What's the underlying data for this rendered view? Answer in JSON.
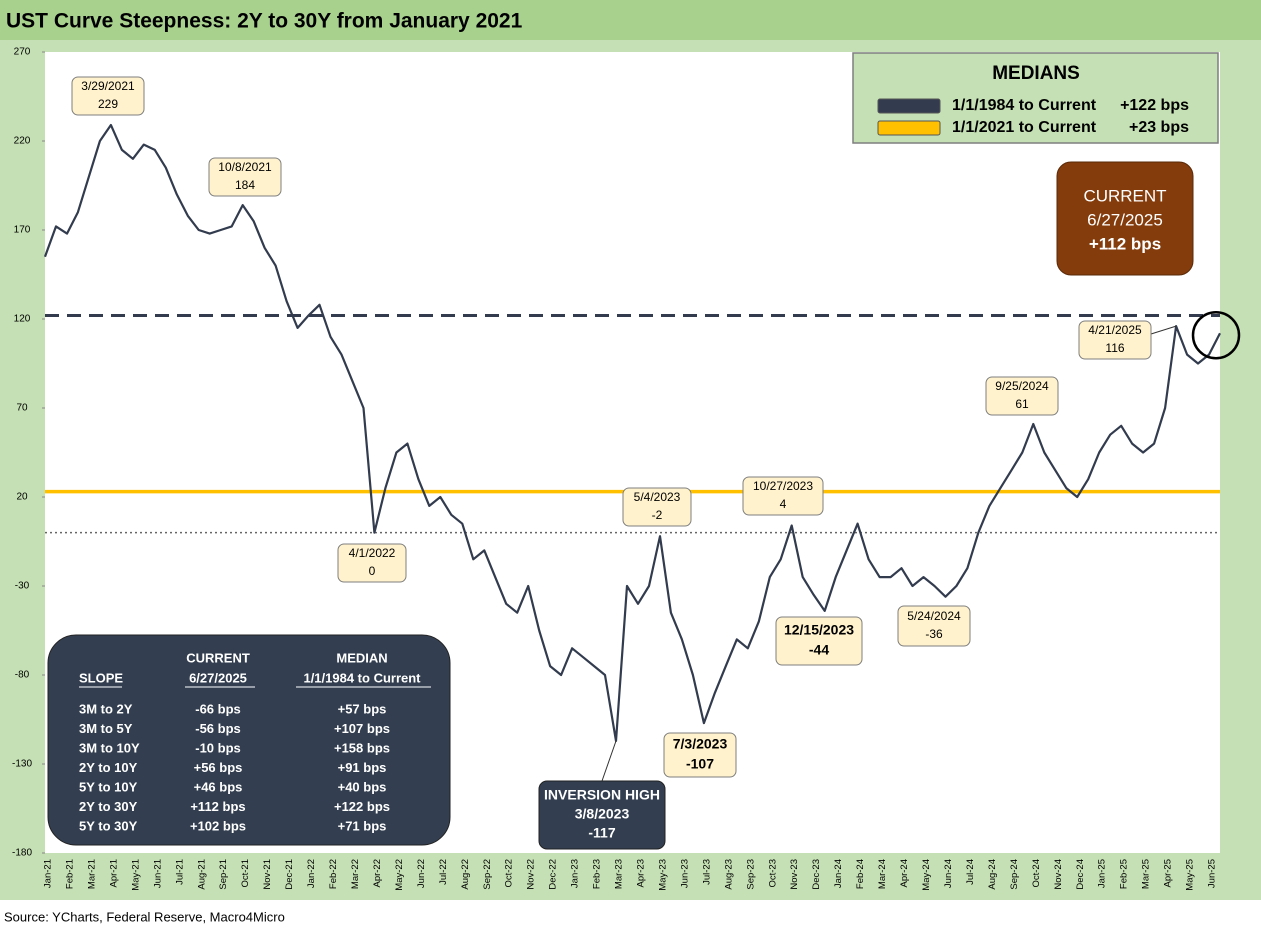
{
  "chart_data": {
    "type": "line",
    "title": "UST Curve Steepness: 2Y to 30Y from January 2021",
    "source": "Source: YCharts, Federal Reserve, Macro4Micro",
    "categories": [
      "Jan-21",
      null,
      "Feb-21",
      null,
      "Mar-21",
      null,
      "Apr-21",
      null,
      "May-21",
      null,
      "Jun-21",
      null,
      "Jul-21",
      null,
      "Aug-21",
      null,
      "Sep-21",
      null,
      "Oct-21",
      null,
      "Nov-21",
      null,
      "Dec-21",
      null,
      "Jan-22",
      null,
      "Feb-22",
      null,
      "Mar-22",
      null,
      "Apr-22",
      null,
      "May-22",
      null,
      "Jun-22",
      null,
      "Jul-22",
      null,
      "Aug-22",
      null,
      "Sep-22",
      null,
      "Oct-22",
      null,
      "Nov-22",
      null,
      "Dec-22",
      null,
      "Jan-23",
      null,
      "Feb-23",
      null,
      "Mar-23",
      null,
      "Apr-23",
      null,
      "May-23",
      null,
      "Jun-23",
      null,
      "Jul-23",
      null,
      "Aug-23",
      null,
      "Sep-23",
      null,
      "Oct-23",
      null,
      "Nov-23",
      null,
      "Dec-23",
      null,
      "Jan-24",
      null,
      "Feb-24",
      null,
      "Mar-24",
      null,
      "Apr-24",
      null,
      "May-24",
      null,
      "Jun-24",
      null,
      "Jul-24",
      null,
      "Aug-24",
      null,
      "Sep-24",
      null,
      "Oct-24",
      null,
      "Nov-24",
      null,
      "Dec-24",
      null,
      "Jan-25",
      null,
      "Feb-25",
      null,
      "Mar-25",
      null,
      "Apr-25",
      null,
      "May-25",
      null,
      "Jun-25",
      null
    ],
    "series": [
      {
        "name": "2Y to 30Y",
        "color": "#323c4e",
        "values": [
          155,
          172,
          168,
          180,
          200,
          220,
          229,
          215,
          210,
          218,
          215,
          205,
          190,
          178,
          170,
          168,
          170,
          172,
          184,
          175,
          160,
          150,
          130,
          115,
          122,
          128,
          110,
          100,
          85,
          70,
          0,
          25,
          45,
          50,
          30,
          15,
          20,
          10,
          5,
          -15,
          -10,
          -25,
          -40,
          -45,
          -30,
          -55,
          -75,
          -80,
          -65,
          -70,
          -75,
          -80,
          -117,
          -30,
          -40,
          -30,
          -2,
          -45,
          -60,
          -80,
          -107,
          -90,
          -75,
          -60,
          -65,
          -50,
          -25,
          -15,
          4,
          -25,
          -35,
          -44,
          -25,
          -10,
          5,
          -15,
          -25,
          -25,
          -20,
          -30,
          -25,
          -30,
          -36,
          -30,
          -20,
          0,
          15,
          25,
          35,
          45,
          61,
          45,
          35,
          25,
          20,
          30,
          45,
          55,
          60,
          50,
          45,
          50,
          70,
          116,
          100,
          95,
          100,
          112
        ]
      }
    ],
    "ylim": [
      -180,
      270
    ],
    "yticks": [
      270,
      220,
      170,
      120,
      70,
      20,
      -30,
      -80,
      -130,
      -180
    ],
    "zero_line": true,
    "medians": [
      {
        "name": "1/1/1984 to Current",
        "value": 122,
        "label": "+122 bps",
        "color": "#323c4e"
      },
      {
        "name": "1/1/2021 to Current",
        "value": 23,
        "label": "+23 bps",
        "color": "#ffc000"
      }
    ],
    "medians_title": "MEDIANS",
    "annotations": [
      {
        "date": "3/29/2021",
        "value": 229
      },
      {
        "date": "10/8/2021",
        "value": 184
      },
      {
        "date": "4/1/2022",
        "value": 0
      },
      {
        "date": "5/4/2023",
        "value": -2
      },
      {
        "date": "7/3/2023",
        "value": -107
      },
      {
        "date": "10/27/2023",
        "value": 4
      },
      {
        "date": "12/15/2023",
        "value": -44
      },
      {
        "date": "5/24/2024",
        "value": -36
      },
      {
        "date": "9/25/2024",
        "value": 61
      },
      {
        "date": "4/21/2025",
        "value": 116
      },
      {
        "title": "INVERSION HIGH",
        "date": "3/8/2023",
        "value": -117
      }
    ],
    "current": {
      "title": "CURRENT",
      "date": "6/27/2025",
      "label": "+112 bps"
    },
    "summary_table": {
      "slope_header": "SLOPE",
      "current_header": [
        "CURRENT",
        "6/27/2025"
      ],
      "median_header": [
        "MEDIAN",
        "1/1/1984 to Current"
      ],
      "rows": [
        [
          "3M to 2Y",
          "-66 bps",
          "+57 bps"
        ],
        [
          "3M to 5Y",
          "-56 bps",
          "+107 bps"
        ],
        [
          "3M to 10Y",
          "-10 bps",
          "+158 bps"
        ],
        [
          "2Y to 10Y",
          "+56 bps",
          "+91 bps"
        ],
        [
          "5Y to 10Y",
          "+46 bps",
          "+40 bps"
        ],
        [
          "2Y to 30Y",
          "+112 bps",
          "+122 bps"
        ],
        [
          "5Y to 30Y",
          "+102 bps",
          "+71 bps"
        ]
      ]
    }
  }
}
